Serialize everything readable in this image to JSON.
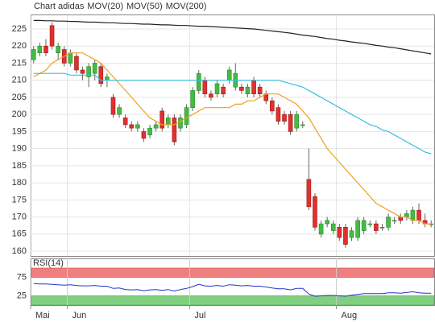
{
  "chart_data": [
    {
      "type": "candlestick",
      "title": "Chart adidas",
      "title_color": "#888888",
      "ylim": [
        158.6,
        229
      ],
      "yticks": [
        160,
        165,
        170,
        175,
        180,
        185,
        190,
        195,
        200,
        205,
        210,
        215,
        220,
        225
      ],
      "grid": true,
      "up_color": "#44bb44",
      "down_color": "#e03030",
      "open": [
        216,
        218,
        220,
        226,
        218,
        219,
        215,
        217,
        213,
        211,
        212,
        214,
        210,
        205,
        200,
        199,
        197,
        196,
        195,
        194,
        196,
        201,
        197,
        199,
        196,
        197,
        202,
        207,
        210,
        206,
        206,
        208,
        210,
        208,
        208,
        206,
        210,
        208,
        206,
        204,
        202,
        200,
        200,
        196,
        197,
        181,
        176,
        165,
        168,
        166,
        167,
        167,
        164,
        164,
        166,
        168,
        168,
        167,
        167,
        169,
        170,
        170,
        169,
        172,
        169,
        168
      ],
      "high": [
        220,
        221,
        222,
        227,
        221,
        220,
        219,
        218,
        214,
        215,
        216,
        215,
        212,
        206,
        203,
        200,
        198,
        198,
        196,
        197,
        198,
        202,
        200,
        200,
        200,
        203,
        208,
        213,
        211,
        207,
        210,
        209,
        214,
        215,
        209,
        209,
        211,
        209,
        207,
        205,
        203,
        201,
        201,
        201,
        198,
        190,
        177,
        169,
        170,
        169,
        168,
        168,
        167,
        170,
        170,
        169,
        169,
        168,
        171,
        170,
        171,
        172,
        173,
        174,
        171,
        169
      ],
      "low": [
        215,
        217,
        217,
        219,
        216,
        214,
        214,
        212,
        210,
        208,
        210,
        208,
        208,
        199,
        199,
        196,
        195,
        195,
        192,
        193,
        195,
        195,
        196,
        191,
        195,
        196,
        201,
        206,
        205,
        204,
        205,
        205,
        209,
        207,
        206,
        205,
        205,
        205,
        203,
        200,
        197,
        197,
        194,
        195,
        196,
        172,
        166,
        164,
        167,
        165,
        163,
        161,
        163,
        163,
        165,
        167,
        165,
        166,
        166,
        168,
        168,
        169,
        168,
        168,
        167,
        167
      ],
      "close": [
        219,
        220,
        218,
        220,
        220,
        215,
        218,
        213,
        212,
        214,
        215,
        209,
        211,
        200,
        202,
        197,
        196,
        197,
        193,
        196,
        197,
        196,
        199,
        192,
        199,
        202,
        207,
        212,
        206,
        205,
        209,
        206,
        213,
        212,
        207,
        208,
        206,
        206,
        204,
        201,
        198,
        198,
        195,
        200,
        197,
        173,
        167,
        168,
        169,
        168,
        164,
        162,
        166,
        169,
        169,
        168,
        166,
        167,
        170,
        169,
        169,
        171,
        172,
        169,
        168,
        168
      ],
      "series": [
        {
          "name": "MOV(20)",
          "color": "#f0a020",
          "values": [
            211,
            212,
            213,
            215,
            216,
            217,
            218,
            218,
            218,
            217,
            216,
            215,
            213,
            211,
            209,
            207,
            205,
            203,
            201,
            199,
            198,
            197,
            197,
            197,
            198,
            199,
            200,
            201,
            202,
            202,
            202,
            202,
            202,
            203,
            203,
            204,
            204,
            205,
            206,
            206,
            206,
            205,
            204,
            203,
            201,
            199,
            196,
            193,
            190,
            188,
            186,
            184,
            182,
            180,
            178,
            176,
            174,
            173,
            172,
            171,
            170,
            170,
            169,
            169,
            168,
            168
          ]
        },
        {
          "name": "MOV(50)",
          "color": "#33c0e0",
          "values": [
            212,
            212,
            212,
            212,
            212,
            212,
            211.5,
            211.5,
            211.5,
            211.5,
            211.5,
            210,
            210,
            210,
            210,
            210,
            210,
            210,
            210,
            210,
            210,
            210,
            210,
            210,
            210,
            210,
            210,
            210,
            210,
            210,
            210,
            210,
            210,
            210,
            210,
            210,
            210,
            210,
            210,
            210,
            210,
            209.5,
            209,
            208.5,
            208,
            207,
            206,
            205,
            204,
            203,
            202,
            201,
            200,
            199,
            198,
            197,
            196.5,
            195.5,
            195,
            194,
            193,
            192,
            191,
            190,
            189,
            188.5
          ]
        },
        {
          "name": "MOV(200)",
          "color": "#222222",
          "values": [
            227.5,
            227.5,
            227.4,
            227.4,
            227.3,
            227.3,
            227.2,
            227.2,
            227.1,
            227.0,
            227.0,
            226.9,
            226.8,
            226.8,
            226.7,
            226.6,
            226.6,
            226.5,
            226.4,
            226.4,
            226.3,
            226.2,
            226.2,
            226.1,
            226.0,
            226.0,
            225.9,
            225.8,
            225.8,
            225.7,
            225.6,
            225.5,
            225.4,
            225.3,
            225.2,
            225.1,
            225.0,
            224.8,
            224.6,
            224.4,
            224.2,
            224.0,
            223.8,
            223.5,
            223.2,
            223.0,
            222.8,
            222.5,
            222.2,
            222.0,
            221.7,
            221.5,
            221.2,
            221.0,
            220.8,
            220.5,
            220.2,
            220.0,
            219.7,
            219.5,
            219.2,
            218.9,
            218.6,
            218.3,
            218.0,
            217.7
          ]
        }
      ]
    },
    {
      "type": "rsi",
      "title": "RSI(14)",
      "ylim": [
        0,
        100
      ],
      "yticks": [
        25,
        75
      ],
      "upper_zone_color": "#f08080",
      "lower_zone_color": "#80d080",
      "categories": [
        "Mai",
        null,
        null,
        null,
        null,
        null,
        "Jun",
        null,
        null,
        null,
        null,
        null,
        null,
        null,
        null,
        null,
        null,
        null,
        null,
        null,
        null,
        null,
        null,
        null,
        null,
        null,
        "Jul",
        null,
        null,
        null,
        null,
        null,
        null,
        null,
        null,
        null,
        null,
        null,
        null,
        null,
        null,
        null,
        null,
        null,
        null,
        null,
        null,
        null,
        null,
        null,
        "Aug",
        null,
        null,
        null,
        null,
        null,
        null,
        null,
        null,
        null,
        null,
        null,
        null,
        null,
        null,
        null
      ],
      "series": [
        {
          "name": "RSI(14)",
          "color": "#2233cc",
          "values": [
            58,
            57,
            57,
            56,
            55,
            54,
            55,
            53,
            52,
            52,
            53,
            51,
            51,
            45,
            46,
            42,
            41,
            42,
            39,
            41,
            42,
            40,
            42,
            38,
            42,
            45,
            50,
            56,
            52,
            51,
            53,
            51,
            55,
            54,
            52,
            53,
            51,
            51,
            49,
            46,
            44,
            44,
            41,
            45,
            45,
            30,
            24,
            25,
            26,
            26,
            25,
            24,
            27,
            29,
            31,
            31,
            31,
            31,
            33,
            33,
            32,
            34,
            36,
            33,
            32,
            32
          ]
        }
      ]
    }
  ]
}
